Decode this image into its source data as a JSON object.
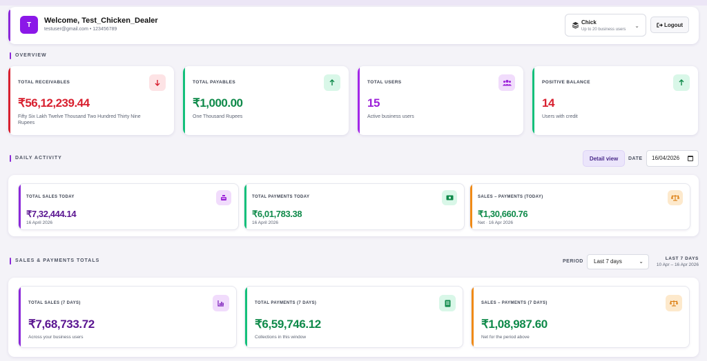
{
  "header": {
    "avatar_letter": "T",
    "welcome": "Welcome, Test_Chicken_Dealer",
    "user_info": "testuser@gmail.com • 123456789",
    "plan_name": "Chick",
    "plan_sub": "Up to 20 business users",
    "logout_label": "Logout"
  },
  "sections": {
    "overview": "OVERVIEW",
    "daily": "DAILY ACTIVITY",
    "totals": "SALES & PAYMENTS TOTALS"
  },
  "overview": [
    {
      "label": "TOTAL RECEIVABLES",
      "value": "₹56,12,239.44",
      "desc": "Fifty Six Lakh Twelve Thousand Two Hundred Thirty Nine Rupees",
      "color": "#d8202f",
      "icon": "arrow-down-icon"
    },
    {
      "label": "TOTAL PAYABLES",
      "value": "₹1,000.00",
      "desc": "One Thousand Rupees",
      "color": "#0f8a4a",
      "icon": "arrow-up-icon"
    },
    {
      "label": "TOTAL USERS",
      "value": "15",
      "desc": "Active business users",
      "color": "#9b1fd8",
      "icon": "users-icon"
    },
    {
      "label": "POSITIVE BALANCE",
      "value": "14",
      "desc": "Users with credit",
      "color": "#d8202f",
      "icon": "arrow-up-icon"
    }
  ],
  "daily": {
    "detail_view_label": "Detail view",
    "date_label": "DATE",
    "date_value": "16/04/2026",
    "cards": [
      {
        "label": "TOTAL SALES TODAY",
        "value": "₹7,32,444.14",
        "sub": "16 April 2026",
        "color": "#5a1591",
        "icon": "register-icon"
      },
      {
        "label": "TOTAL PAYMENTS TODAY",
        "value": "₹6,01,783.38",
        "sub": "16 April 2026",
        "color": "#0f8a4a",
        "icon": "cash-icon"
      },
      {
        "label": "SALES – PAYMENTS (TODAY)",
        "value": "₹1,30,660.76",
        "sub": "Net · 16 Apr 2026",
        "color": "#0f8a4a",
        "icon": "scale-icon"
      }
    ]
  },
  "totals": {
    "period_label": "PERIOD",
    "period_value": "Last 7 days",
    "range_title": "LAST 7 DAYS",
    "range_sub": "10 Apr – 16 Apr 2026",
    "cards": [
      {
        "label": "TOTAL SALES (7 DAYS)",
        "value": "₹7,68,733.72",
        "sub": "Across your business users",
        "color": "#5a1591",
        "icon": "chart-icon"
      },
      {
        "label": "TOTAL PAYMENTS (7 DAYS)",
        "value": "₹6,59,746.12",
        "sub": "Collections in this window",
        "color": "#0f8a4a",
        "icon": "receipt-icon"
      },
      {
        "label": "SALES – PAYMENTS (7 DAYS)",
        "value": "₹1,08,987.60",
        "sub": "Net for the period above",
        "color": "#0f8a4a",
        "icon": "scale-icon"
      }
    ]
  },
  "colors": {
    "accent": "#8b28d9",
    "red": "#d8202f",
    "green": "#0f8a4a",
    "purple": "#9b1fd8",
    "orange": "#f08a16"
  }
}
